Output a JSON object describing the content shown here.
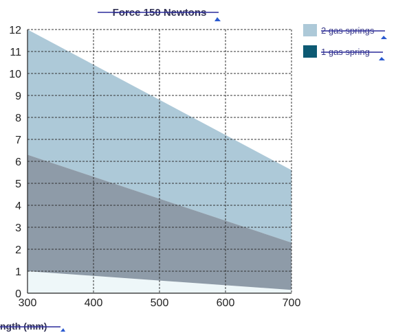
{
  "chart_data": {
    "type": "area",
    "title": "Force 150  Newtons",
    "xlabel": "ngth (mm)",
    "ylabel": "",
    "xlim": [
      300,
      700
    ],
    "ylim": [
      0,
      12
    ],
    "xticks": [
      "300",
      "400",
      "500",
      "600",
      "700"
    ],
    "yticks": [
      "0",
      "1",
      "2",
      "3",
      "4",
      "5",
      "6",
      "7",
      "8",
      "9",
      "10",
      "11",
      "12"
    ],
    "grid": true,
    "legend_position": "top-right",
    "series": [
      {
        "name": "2 gas springs",
        "color": "#adc9d8",
        "x": [
          300,
          700
        ],
        "upper": [
          12,
          5.6
        ],
        "lower": [
          6.3,
          2.3
        ]
      },
      {
        "name": "1 gas spring",
        "color": "#8e9ba8",
        "legend_color": "#0d5a73",
        "x": [
          300,
          700
        ],
        "upper": [
          6.3,
          2.3
        ],
        "lower": [
          1.0,
          0.15
        ]
      }
    ],
    "baseline_band": {
      "color": "#eef7f9",
      "x": [
        300,
        700
      ],
      "upper": [
        1.0,
        0.15
      ],
      "lower": [
        0,
        0
      ]
    }
  }
}
